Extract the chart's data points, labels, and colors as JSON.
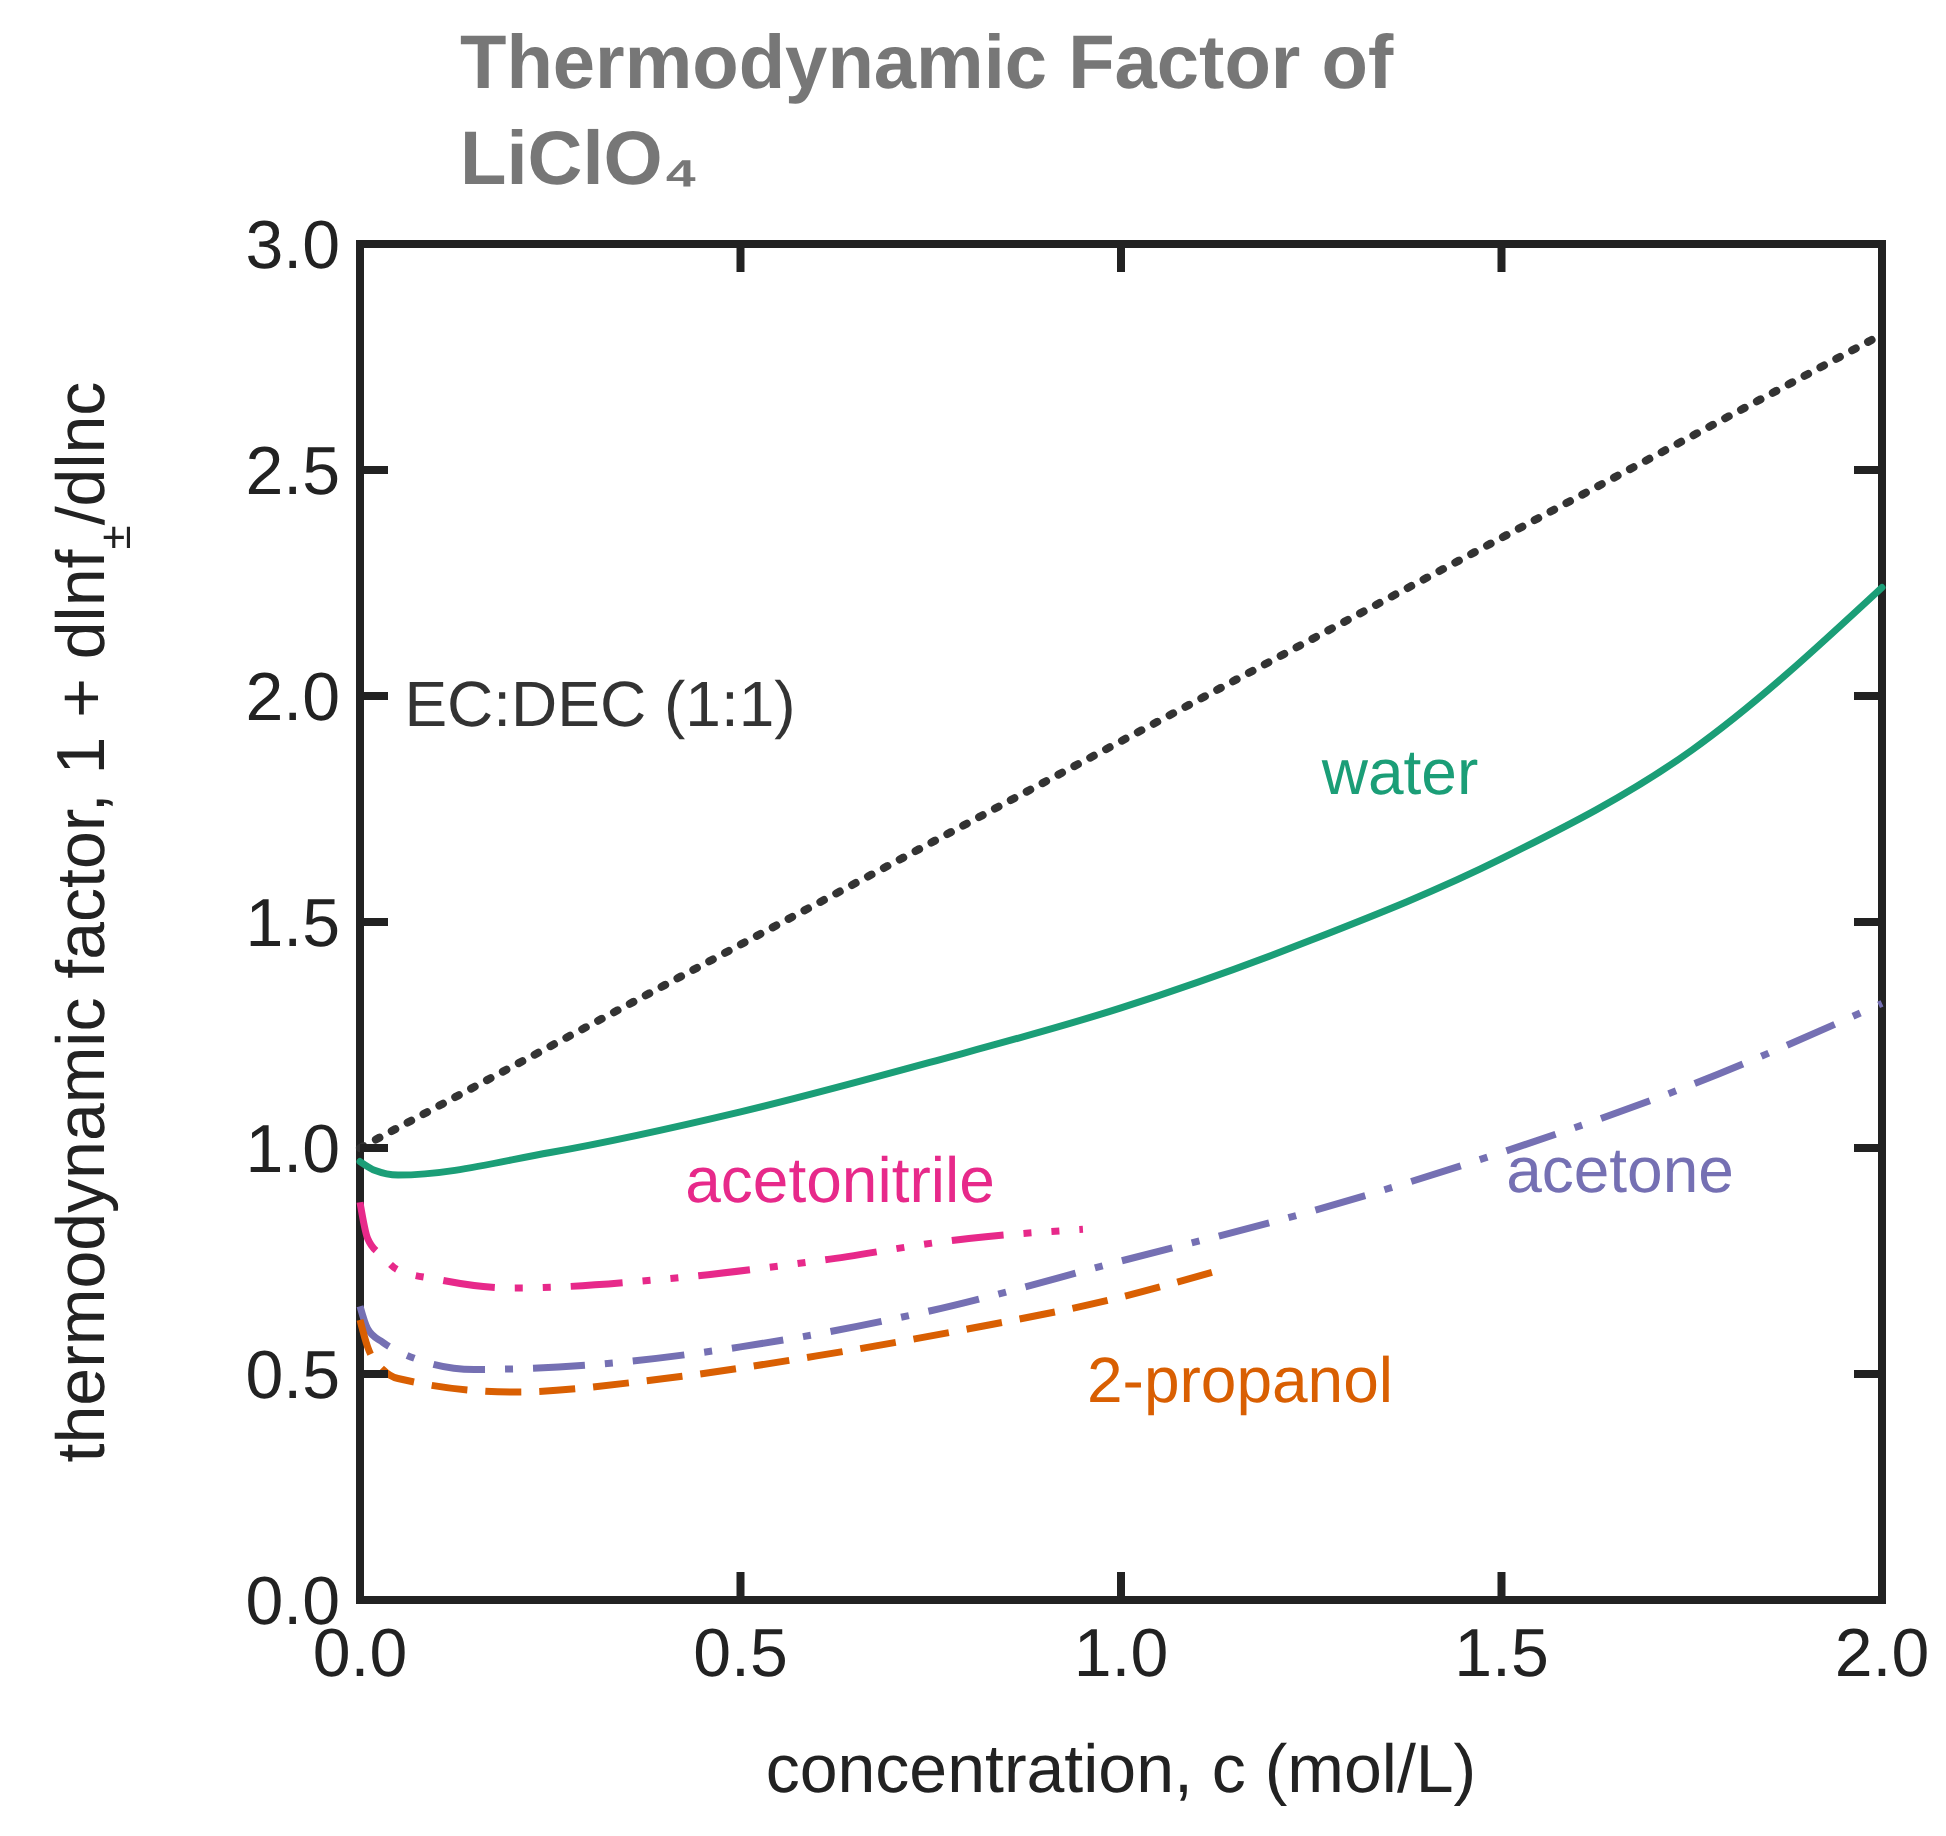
{
  "chart_data": {
    "type": "line",
    "title": "Thermodynamic Factor of LiClO₄",
    "xlabel": "concentration, c (mol/L)",
    "ylabel": "thermodynamic factor, 1 + dlnf$_{±}$/dlnc",
    "xlim": [
      0,
      2
    ],
    "ylim": [
      0,
      3
    ],
    "xticks": [
      {
        "value": 0,
        "label": "0.0"
      },
      0.5,
      {
        "value": 1,
        "label": "1.0"
      },
      1.5,
      {
        "value": 2,
        "label": "2.0"
      }
    ],
    "yticks": [
      {
        "value": 0,
        "label": "0.0"
      },
      0.5,
      {
        "value": 1,
        "label": "1.0"
      },
      1.5,
      {
        "value": 2,
        "label": "2.0"
      },
      2.5,
      {
        "value": 3,
        "label": "3.0"
      }
    ],
    "series": [
      {
        "name": "EC:DEC (1:1)",
        "color": "#333333",
        "line_style": "dotted",
        "x": [
          0,
          2
        ],
        "values": [
          1.0,
          2.8
        ]
      },
      {
        "name": "water",
        "color": "#1b9e77",
        "line_style": "solid",
        "x": [
          0,
          0.02,
          0.05,
          0.25,
          0.5,
          0.75,
          1.0,
          1.25,
          1.5,
          1.75,
          2.0
        ],
        "values": [
          0.97,
          0.95,
          0.94,
          0.99,
          1.08,
          1.19,
          1.31,
          1.46,
          1.64,
          1.88,
          2.24
        ]
      },
      {
        "name": "acetonitrile",
        "color": "#e7298a",
        "line_style": "dashdotdot",
        "x": [
          0,
          0.01,
          0.03,
          0.05,
          0.1,
          0.2,
          0.4,
          0.6,
          0.8,
          0.95
        ],
        "values": [
          0.88,
          0.8,
          0.76,
          0.73,
          0.71,
          0.69,
          0.71,
          0.75,
          0.8,
          0.82
        ]
      },
      {
        "name": "acetone",
        "color": "#7570b3",
        "line_style": "dashdot",
        "x": [
          0,
          0.01,
          0.03,
          0.05,
          0.15,
          0.3,
          0.5,
          0.75,
          1.0,
          1.25,
          1.5,
          1.75,
          2.0
        ],
        "values": [
          0.65,
          0.6,
          0.57,
          0.55,
          0.51,
          0.52,
          0.56,
          0.64,
          0.75,
          0.86,
          0.99,
          1.14,
          1.32
        ]
      },
      {
        "name": "2-propanol",
        "color": "#d95f02",
        "line_style": "dashed",
        "x": [
          0,
          0.01,
          0.03,
          0.05,
          0.2,
          0.4,
          0.6,
          0.8,
          1.0,
          1.13
        ],
        "values": [
          0.62,
          0.56,
          0.51,
          0.49,
          0.46,
          0.49,
          0.54,
          0.6,
          0.67,
          0.73
        ]
      }
    ]
  }
}
